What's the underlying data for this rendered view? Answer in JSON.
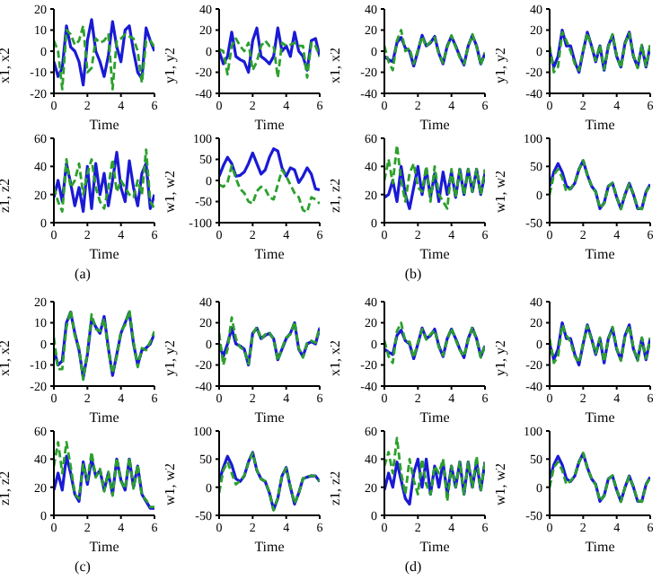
{
  "chart_data": [
    {
      "type": "line",
      "ylabel": "x1, x2",
      "xlabel": "Time",
      "xlim": [
        0,
        6
      ],
      "xticks": [
        0,
        2,
        4,
        6
      ],
      "ylim": [
        -20,
        20
      ],
      "yticks": [
        -20,
        -10,
        0,
        10,
        20
      ],
      "x": [
        0,
        0.25,
        0.5,
        0.75,
        1,
        1.25,
        1.5,
        1.75,
        2,
        2.25,
        2.5,
        2.75,
        3,
        3.25,
        3.5,
        3.75,
        4,
        4.25,
        4.5,
        4.75,
        5,
        5.25,
        5.5,
        5.75,
        6
      ],
      "series": [
        {
          "color": "#1a1ad6",
          "line_style": "solid",
          "values": [
            -5,
            -12,
            -8,
            12,
            2,
            0,
            -5,
            -16,
            5,
            15,
            0,
            -5,
            -12,
            -2,
            14,
            2,
            -5,
            10,
            12,
            0,
            -10,
            -13,
            11,
            5,
            0
          ]
        },
        {
          "color": "#2ca02c",
          "line_style": "dashed",
          "values": [
            5,
            0,
            -18,
            10,
            8,
            3,
            5,
            12,
            -10,
            -8,
            6,
            4,
            5,
            8,
            -18,
            5,
            6,
            8,
            7,
            6,
            0,
            -15,
            5,
            5,
            2
          ]
        }
      ]
    },
    {
      "type": "line",
      "ylabel": "y1, y2",
      "xlabel": "Time",
      "xlim": [
        0,
        6
      ],
      "xticks": [
        0,
        2,
        4,
        6
      ],
      "ylim": [
        -40,
        40
      ],
      "yticks": [
        -40,
        -20,
        0,
        20,
        40
      ],
      "x": [
        0,
        0.25,
        0.5,
        0.75,
        1,
        1.25,
        1.5,
        1.75,
        2,
        2.25,
        2.5,
        2.75,
        3,
        3.25,
        3.5,
        3.75,
        4,
        4.25,
        4.5,
        4.75,
        5,
        5.25,
        5.5,
        5.75,
        6
      ],
      "series": [
        {
          "color": "#1a1ad6",
          "line_style": "solid",
          "values": [
            0,
            -12,
            -5,
            18,
            -5,
            -8,
            -10,
            -20,
            10,
            22,
            -5,
            -8,
            -12,
            -5,
            22,
            0,
            5,
            -5,
            18,
            0,
            -5,
            -18,
            10,
            12,
            -5
          ]
        },
        {
          "color": "#2ca02c",
          "line_style": "dashed",
          "values": [
            2,
            0,
            -22,
            5,
            12,
            5,
            0,
            8,
            -18,
            -10,
            5,
            10,
            5,
            5,
            -25,
            8,
            5,
            6,
            8,
            5,
            5,
            -25,
            8,
            5,
            -5
          ]
        }
      ]
    },
    {
      "type": "line",
      "ylabel": "z1, z2",
      "xlabel": "Time",
      "xlim": [
        0,
        6
      ],
      "xticks": [
        0,
        2,
        4,
        6
      ],
      "ylim": [
        0,
        60
      ],
      "yticks": [
        0,
        20,
        40,
        60
      ],
      "x": [
        0,
        0.25,
        0.5,
        0.75,
        1,
        1.25,
        1.5,
        1.75,
        2,
        2.25,
        2.5,
        2.75,
        3,
        3.25,
        3.5,
        3.75,
        4,
        4.25,
        4.5,
        4.75,
        5,
        5.25,
        5.5,
        5.75,
        6
      ],
      "series": [
        {
          "color": "#1a1ad6",
          "line_style": "solid",
          "values": [
            18,
            30,
            15,
            42,
            28,
            12,
            25,
            8,
            40,
            10,
            42,
            20,
            35,
            12,
            30,
            50,
            25,
            15,
            44,
            25,
            12,
            35,
            42,
            10,
            20
          ]
        },
        {
          "color": "#2ca02c",
          "line_style": "dashed",
          "values": [
            25,
            15,
            8,
            45,
            25,
            30,
            42,
            20,
            35,
            45,
            25,
            15,
            10,
            25,
            45,
            22,
            30,
            25,
            20,
            18,
            30,
            20,
            52,
            15,
            10
          ]
        }
      ]
    },
    {
      "type": "line",
      "ylabel": "w1, w2",
      "xlabel": "Time",
      "xlim": [
        0,
        6
      ],
      "xticks": [
        0,
        2,
        4,
        6
      ],
      "ylim": [
        -100,
        100
      ],
      "yticks": [
        -100,
        -50,
        0,
        50,
        100
      ],
      "annotations": [
        "(a)"
      ],
      "x": [
        0,
        0.25,
        0.5,
        0.75,
        1,
        1.25,
        1.5,
        1.75,
        2,
        2.25,
        2.5,
        2.75,
        3,
        3.25,
        3.5,
        3.75,
        4,
        4.25,
        4.5,
        4.75,
        5,
        5.25,
        5.5,
        5.75,
        6
      ],
      "series": [
        {
          "color": "#1a1ad6",
          "line_style": "solid",
          "values": [
            10,
            35,
            55,
            40,
            10,
            12,
            20,
            40,
            65,
            40,
            15,
            25,
            55,
            75,
            70,
            30,
            10,
            30,
            25,
            -5,
            10,
            30,
            15,
            -20,
            -22
          ]
        },
        {
          "color": "#2ca02c",
          "line_style": "dashed",
          "values": [
            -10,
            -15,
            -5,
            35,
            5,
            -20,
            -30,
            -50,
            -55,
            -25,
            -15,
            -20,
            -40,
            -45,
            -10,
            25,
            10,
            -10,
            -30,
            -40,
            -70,
            -75,
            -40,
            -45,
            -55
          ]
        }
      ]
    },
    {
      "type": "line",
      "ylabel": "x1, x2",
      "xlabel": "Time",
      "xlim": [
        0,
        6
      ],
      "xticks": [
        0,
        2,
        4,
        6
      ],
      "ylim": [
        -40,
        40
      ],
      "yticks": [
        -40,
        -20,
        0,
        20,
        40
      ],
      "x": [
        0,
        0.25,
        0.5,
        0.75,
        1,
        1.25,
        1.5,
        1.75,
        2,
        2.25,
        2.5,
        2.75,
        3,
        3.25,
        3.5,
        3.75,
        4,
        4.25,
        4.5,
        4.75,
        5,
        5.25,
        5.5,
        5.75,
        6
      ],
      "series": [
        {
          "color": "#1a1ad6",
          "line_style": "solid",
          "values": [
            -5,
            -8,
            -10,
            8,
            13,
            3,
            0,
            -14,
            0,
            15,
            5,
            8,
            14,
            -2,
            -12,
            5,
            14,
            5,
            -5,
            -13,
            5,
            15,
            5,
            -12,
            -2
          ]
        },
        {
          "color": "#2ca02c",
          "line_style": "dashed",
          "values": [
            5,
            -10,
            -18,
            10,
            20,
            0,
            3,
            -12,
            1,
            14,
            4,
            9,
            13,
            -3,
            -11,
            4,
            15,
            4,
            -6,
            -12,
            4,
            16,
            4,
            -13,
            -1
          ]
        }
      ]
    },
    {
      "type": "line",
      "ylabel": "y1, y2",
      "xlabel": "Time",
      "xlim": [
        0,
        6
      ],
      "xticks": [
        0,
        2,
        4,
        6
      ],
      "ylim": [
        -40,
        40
      ],
      "yticks": [
        -40,
        -20,
        0,
        20,
        40
      ],
      "x": [
        0,
        0.25,
        0.5,
        0.75,
        1,
        1.25,
        1.5,
        1.75,
        2,
        2.25,
        2.5,
        2.75,
        3,
        3.25,
        3.5,
        3.75,
        4,
        4.25,
        4.5,
        4.75,
        5,
        5.25,
        5.5,
        5.75,
        6
      ],
      "series": [
        {
          "color": "#1a1ad6",
          "line_style": "solid",
          "values": [
            0,
            -15,
            -5,
            20,
            5,
            5,
            -10,
            -20,
            0,
            18,
            5,
            -10,
            5,
            -18,
            5,
            15,
            -5,
            -15,
            8,
            18,
            -5,
            -15,
            5,
            -15,
            5
          ]
        },
        {
          "color": "#2ca02c",
          "line_style": "dashed",
          "values": [
            5,
            -20,
            -15,
            18,
            10,
            0,
            -12,
            -18,
            1,
            17,
            4,
            -9,
            6,
            -17,
            4,
            16,
            -4,
            -16,
            7,
            17,
            -4,
            -16,
            6,
            -14,
            6
          ]
        }
      ]
    },
    {
      "type": "line",
      "ylabel": "z1, z2",
      "xlabel": "Time",
      "xlim": [
        0,
        6
      ],
      "xticks": [
        0,
        2,
        4,
        6
      ],
      "ylim": [
        0,
        60
      ],
      "yticks": [
        0,
        20,
        40,
        60
      ],
      "x": [
        0,
        0.25,
        0.5,
        0.75,
        1,
        1.25,
        1.5,
        1.75,
        2,
        2.25,
        2.5,
        2.75,
        3,
        3.25,
        3.5,
        3.75,
        4,
        4.25,
        4.5,
        4.75,
        5,
        5.25,
        5.5,
        5.75,
        6
      ],
      "series": [
        {
          "color": "#1a1ad6",
          "line_style": "solid",
          "values": [
            18,
            20,
            30,
            15,
            40,
            20,
            10,
            25,
            40,
            20,
            38,
            18,
            35,
            15,
            36,
            20,
            36,
            18,
            38,
            20,
            38,
            22,
            38,
            20,
            35
          ]
        },
        {
          "color": "#2ca02c",
          "line_style": "dashed",
          "values": [
            30,
            45,
            28,
            55,
            30,
            15,
            35,
            42,
            25,
            22,
            40,
            15,
            40,
            20,
            15,
            10,
            38,
            18,
            38,
            20,
            38,
            22,
            38,
            20,
            38
          ]
        }
      ]
    },
    {
      "type": "line",
      "ylabel": "w1, w2",
      "xlabel": "Time",
      "xlim": [
        0,
        6
      ],
      "xticks": [
        0,
        2,
        4,
        6
      ],
      "ylim": [
        -50,
        100
      ],
      "yticks": [
        -50,
        0,
        50,
        100
      ],
      "annotations": [
        "(b)"
      ],
      "x": [
        0,
        0.25,
        0.5,
        0.75,
        1,
        1.25,
        1.5,
        1.75,
        2,
        2.25,
        2.5,
        2.75,
        3,
        3.25,
        3.5,
        3.75,
        4,
        4.25,
        4.5,
        4.75,
        5,
        5.25,
        5.5,
        5.75,
        6
      ],
      "series": [
        {
          "color": "#1a1ad6",
          "line_style": "solid",
          "values": [
            15,
            40,
            55,
            40,
            15,
            10,
            20,
            45,
            60,
            35,
            15,
            5,
            -25,
            -15,
            15,
            20,
            -5,
            -25,
            0,
            20,
            0,
            -25,
            -25,
            5,
            18
          ]
        },
        {
          "color": "#2ca02c",
          "line_style": "dashed",
          "values": [
            0,
            35,
            45,
            30,
            5,
            11,
            21,
            44,
            61,
            34,
            16,
            4,
            -24,
            -16,
            14,
            21,
            -4,
            -26,
            1,
            19,
            1,
            -24,
            -26,
            4,
            17
          ]
        }
      ]
    },
    {
      "type": "line",
      "ylabel": "x1, x2",
      "xlabel": "Time",
      "xlim": [
        0,
        6
      ],
      "xticks": [
        0,
        2,
        4,
        6
      ],
      "ylim": [
        -20,
        20
      ],
      "yticks": [
        -20,
        -10,
        0,
        10,
        20
      ],
      "x": [
        0,
        0.25,
        0.5,
        0.75,
        1,
        1.25,
        1.5,
        1.75,
        2,
        2.25,
        2.5,
        2.75,
        3,
        3.25,
        3.5,
        3.75,
        4,
        4.25,
        4.5,
        4.75,
        5,
        5.25,
        5.5,
        5.75,
        6
      ],
      "series": [
        {
          "color": "#1a1ad6",
          "line_style": "solid",
          "values": [
            -3,
            -10,
            -8,
            10,
            15,
            5,
            -3,
            -16,
            -5,
            12,
            8,
            5,
            13,
            -2,
            -15,
            -5,
            5,
            10,
            15,
            0,
            -10,
            -3,
            -2,
            0,
            5
          ]
        },
        {
          "color": "#2ca02c",
          "line_style": "dashed",
          "values": [
            3,
            -12,
            -12,
            8,
            16,
            4,
            -2,
            -17,
            -4,
            14,
            7,
            6,
            12,
            -3,
            -14,
            -6,
            6,
            9,
            16,
            1,
            -11,
            -2,
            -3,
            1,
            6
          ]
        }
      ]
    },
    {
      "type": "line",
      "ylabel": "y1, y2",
      "xlabel": "Time",
      "xlim": [
        0,
        6
      ],
      "xticks": [
        0,
        2,
        4,
        6
      ],
      "ylim": [
        -40,
        40
      ],
      "yticks": [
        -40,
        -20,
        0,
        20,
        40
      ],
      "x": [
        0,
        0.25,
        0.5,
        0.75,
        1,
        1.25,
        1.5,
        1.75,
        2,
        2.25,
        2.5,
        2.75,
        3,
        3.25,
        3.5,
        3.75,
        4,
        4.25,
        4.5,
        4.75,
        5,
        5.25,
        5.5,
        5.75,
        6
      ],
      "series": [
        {
          "color": "#1a1ad6",
          "line_style": "solid",
          "values": [
            0,
            -12,
            0,
            15,
            0,
            -2,
            -5,
            -20,
            10,
            15,
            5,
            8,
            10,
            5,
            -15,
            -5,
            5,
            10,
            20,
            -5,
            -12,
            0,
            2,
            0,
            15
          ]
        },
        {
          "color": "#2ca02c",
          "line_style": "dashed",
          "values": [
            10,
            -20,
            -5,
            25,
            5,
            -3,
            -6,
            -19,
            9,
            16,
            4,
            9,
            11,
            4,
            -16,
            -4,
            6,
            9,
            21,
            -4,
            -13,
            1,
            3,
            1,
            16
          ]
        }
      ]
    },
    {
      "type": "line",
      "ylabel": "z1, z2",
      "xlabel": "Time",
      "xlim": [
        0,
        6
      ],
      "xticks": [
        0,
        2,
        4,
        6
      ],
      "ylim": [
        0,
        60
      ],
      "yticks": [
        0,
        20,
        40,
        60
      ],
      "x": [
        0,
        0.25,
        0.5,
        0.75,
        1,
        1.25,
        1.5,
        1.75,
        2,
        2.25,
        2.5,
        2.75,
        3,
        3.25,
        3.5,
        3.75,
        4,
        4.25,
        4.5,
        4.75,
        5,
        5.25,
        5.5,
        5.75,
        6
      ],
      "series": [
        {
          "color": "#1a1ad6",
          "line_style": "solid",
          "values": [
            18,
            30,
            18,
            42,
            30,
            15,
            10,
            38,
            22,
            40,
            28,
            32,
            18,
            30,
            15,
            40,
            25,
            18,
            40,
            20,
            35,
            15,
            10,
            5,
            5
          ]
        },
        {
          "color": "#2ca02c",
          "line_style": "dashed",
          "values": [
            35,
            52,
            30,
            52,
            35,
            15,
            12,
            36,
            25,
            45,
            27,
            33,
            17,
            31,
            14,
            41,
            24,
            19,
            41,
            19,
            36,
            14,
            11,
            6,
            6
          ]
        }
      ]
    },
    {
      "type": "line",
      "ylabel": "w1, w2",
      "xlabel": "Time",
      "xlim": [
        0,
        6
      ],
      "xticks": [
        0,
        2,
        4,
        6
      ],
      "ylim": [
        -50,
        100
      ],
      "yticks": [
        -50,
        0,
        50,
        100
      ],
      "annotations": [
        "(c)"
      ],
      "x": [
        0,
        0.25,
        0.5,
        0.75,
        1,
        1.25,
        1.5,
        1.75,
        2,
        2.25,
        2.5,
        2.75,
        3,
        3.25,
        3.5,
        3.75,
        4,
        4.25,
        4.5,
        4.75,
        5,
        5.25,
        5.5,
        5.75,
        6
      ],
      "series": [
        {
          "color": "#1a1ad6",
          "line_style": "solid",
          "values": [
            10,
            35,
            55,
            40,
            15,
            10,
            20,
            45,
            62,
            30,
            15,
            10,
            -10,
            -40,
            -20,
            20,
            35,
            0,
            -30,
            -10,
            15,
            18,
            20,
            20,
            10
          ]
        },
        {
          "color": "#2ca02c",
          "line_style": "dashed",
          "values": [
            -10,
            30,
            45,
            25,
            5,
            11,
            21,
            44,
            61,
            31,
            14,
            11,
            -9,
            -41,
            -19,
            21,
            34,
            1,
            -29,
            -11,
            16,
            17,
            21,
            19,
            11
          ]
        }
      ]
    },
    {
      "type": "line",
      "ylabel": "x1, x2",
      "xlabel": "Time",
      "xlim": [
        0,
        6
      ],
      "xticks": [
        0,
        2,
        4,
        6
      ],
      "ylim": [
        -40,
        40
      ],
      "yticks": [
        -40,
        -20,
        0,
        20,
        40
      ],
      "x": [
        0,
        0.25,
        0.5,
        0.75,
        1,
        1.25,
        1.5,
        1.75,
        2,
        2.25,
        2.5,
        2.75,
        3,
        3.25,
        3.5,
        3.75,
        4,
        4.25,
        4.5,
        4.75,
        5,
        5.25,
        5.5,
        5.75,
        6
      ],
      "series": [
        {
          "color": "#1a1ad6",
          "line_style": "solid",
          "values": [
            -5,
            -8,
            -10,
            8,
            13,
            3,
            0,
            -14,
            0,
            15,
            5,
            8,
            14,
            -2,
            -12,
            5,
            14,
            5,
            -5,
            -13,
            5,
            15,
            5,
            -12,
            -2
          ]
        },
        {
          "color": "#2ca02c",
          "line_style": "dashed",
          "values": [
            3,
            -12,
            -18,
            12,
            20,
            2,
            2,
            -13,
            1,
            14,
            4,
            9,
            13,
            -3,
            -11,
            4,
            15,
            4,
            -6,
            -12,
            4,
            16,
            4,
            -13,
            -1
          ]
        }
      ]
    },
    {
      "type": "line",
      "ylabel": "y1, y2",
      "xlabel": "Time",
      "xlim": [
        0,
        6
      ],
      "xticks": [
        0,
        2,
        4,
        6
      ],
      "ylim": [
        -40,
        40
      ],
      "yticks": [
        -40,
        -20,
        0,
        20,
        40
      ],
      "x": [
        0,
        0.25,
        0.5,
        0.75,
        1,
        1.25,
        1.5,
        1.75,
        2,
        2.25,
        2.5,
        2.75,
        3,
        3.25,
        3.5,
        3.75,
        4,
        4.25,
        4.5,
        4.75,
        5,
        5.25,
        5.5,
        5.75,
        6
      ],
      "series": [
        {
          "color": "#1a1ad6",
          "line_style": "solid",
          "values": [
            0,
            -15,
            -5,
            20,
            5,
            5,
            -10,
            -20,
            0,
            18,
            5,
            -10,
            5,
            -18,
            5,
            15,
            -5,
            -15,
            8,
            18,
            -5,
            -15,
            5,
            -15,
            5
          ]
        },
        {
          "color": "#2ca02c",
          "line_style": "dashed",
          "values": [
            5,
            -18,
            -12,
            18,
            8,
            2,
            -12,
            -18,
            1,
            17,
            4,
            -9,
            6,
            -17,
            4,
            16,
            -4,
            -16,
            7,
            17,
            -4,
            -16,
            6,
            -14,
            6
          ]
        }
      ]
    },
    {
      "type": "line",
      "ylabel": "z1, z2",
      "xlabel": "Time",
      "xlim": [
        0,
        6
      ],
      "xticks": [
        0,
        2,
        4,
        6
      ],
      "ylim": [
        0,
        60
      ],
      "yticks": [
        0,
        20,
        40,
        60
      ],
      "x": [
        0,
        0.25,
        0.5,
        0.75,
        1,
        1.25,
        1.5,
        1.75,
        2,
        2.25,
        2.5,
        2.75,
        3,
        3.25,
        3.5,
        3.75,
        4,
        4.25,
        4.5,
        4.75,
        5,
        5.25,
        5.5,
        5.75,
        6
      ],
      "series": [
        {
          "color": "#1a1ad6",
          "line_style": "solid",
          "values": [
            18,
            30,
            20,
            38,
            25,
            12,
            8,
            30,
            40,
            20,
            40,
            15,
            35,
            20,
            38,
            15,
            35,
            20,
            38,
            15,
            38,
            20,
            38,
            18,
            38
          ]
        },
        {
          "color": "#2ca02c",
          "line_style": "dashed",
          "values": [
            35,
            45,
            30,
            55,
            30,
            15,
            40,
            25,
            15,
            40,
            22,
            15,
            35,
            30,
            40,
            10,
            35,
            20,
            38,
            15,
            38,
            20,
            42,
            18,
            38
          ]
        }
      ]
    },
    {
      "type": "line",
      "ylabel": "w1, w2",
      "xlabel": "Time",
      "xlim": [
        0,
        6
      ],
      "xticks": [
        0,
        2,
        4,
        6
      ],
      "ylim": [
        -50,
        100
      ],
      "yticks": [
        -50,
        0,
        50,
        100
      ],
      "annotations": [
        "(d)"
      ],
      "x": [
        0,
        0.25,
        0.5,
        0.75,
        1,
        1.25,
        1.5,
        1.75,
        2,
        2.25,
        2.5,
        2.75,
        3,
        3.25,
        3.5,
        3.75,
        4,
        4.25,
        4.5,
        4.75,
        5,
        5.25,
        5.5,
        5.75,
        6
      ],
      "series": [
        {
          "color": "#1a1ad6",
          "line_style": "solid",
          "values": [
            15,
            40,
            55,
            40,
            15,
            10,
            20,
            45,
            60,
            35,
            15,
            5,
            -25,
            -15,
            15,
            20,
            -5,
            -25,
            0,
            20,
            0,
            -25,
            -25,
            5,
            18
          ]
        },
        {
          "color": "#2ca02c",
          "line_style": "dashed",
          "values": [
            0,
            35,
            45,
            30,
            5,
            11,
            21,
            44,
            61,
            34,
            16,
            4,
            -24,
            -16,
            14,
            21,
            -4,
            -26,
            1,
            19,
            1,
            -24,
            -26,
            4,
            17
          ]
        }
      ]
    }
  ]
}
